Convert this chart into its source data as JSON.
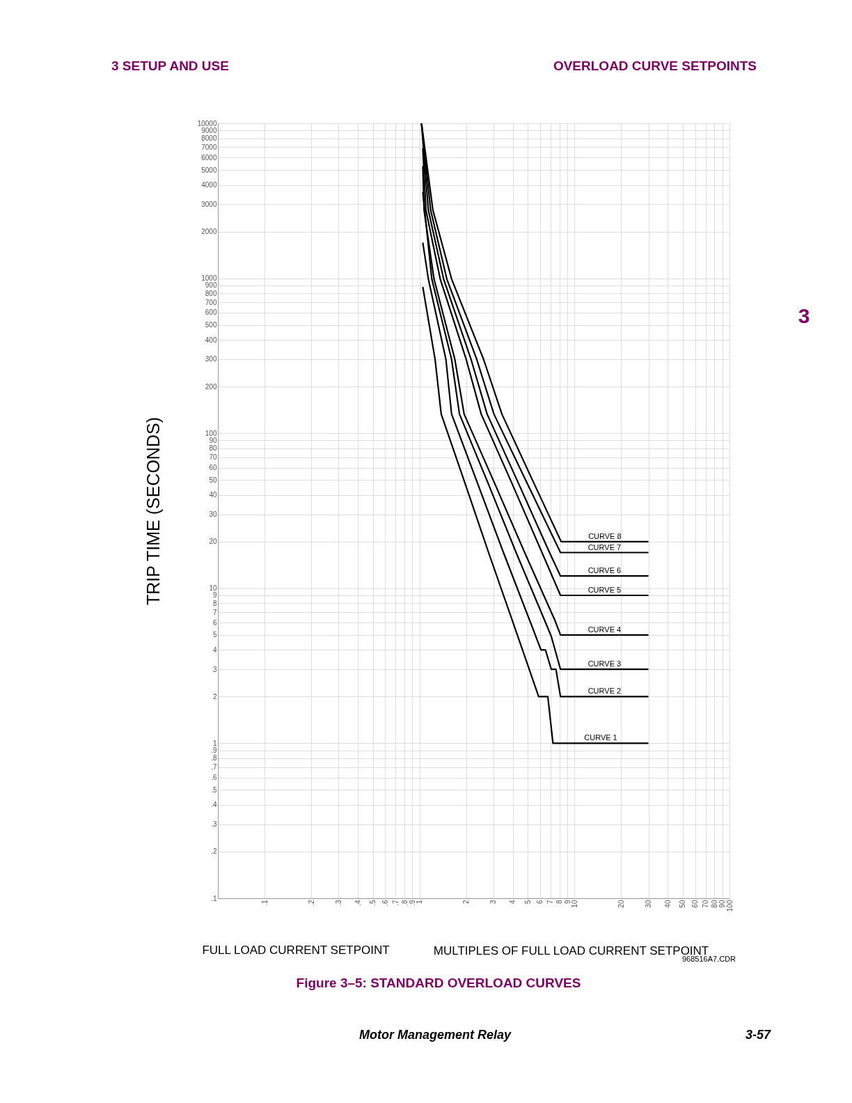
{
  "chart_data": {
    "type": "line",
    "title": "Figure 3–5: STANDARD OVERLOAD CURVES",
    "xlabel": "MULTIPLES OF FULL LOAD  CURRENT SETPOINT",
    "ylabel": "TRIP TIME (SECONDS)",
    "annotations": [
      "3 SETUP AND USE",
      "OVERLOAD CURVE SETPOINTS",
      "3",
      "FULL LOAD  CURRENT SETPOINT",
      "968516A7.CDR",
      "Motor Management Relay",
      "3-57"
    ],
    "log": "xy",
    "grid": true,
    "legend": false,
    "marker": "none",
    "line_style": "solid",
    "xlim": [
      0.05,
      100
    ],
    "ylim": [
      0.1,
      10000
    ],
    "xticks": [
      {
        "value": 0.1,
        "label": ".1"
      },
      {
        "value": 0.2,
        "label": ".2"
      },
      {
        "value": 0.3,
        "label": ".3"
      },
      {
        "value": 0.4,
        "label": ".4"
      },
      {
        "value": 0.5,
        "label": ".5"
      },
      {
        "value": 0.6,
        "label": ".6"
      },
      {
        "value": 0.7,
        "label": ".7"
      },
      {
        "value": 0.8,
        "label": ".8"
      },
      {
        "value": 0.9,
        "label": ".9"
      },
      1,
      2,
      3,
      4,
      5,
      6,
      7,
      8,
      9,
      10,
      20,
      30,
      40,
      50,
      60,
      70,
      80,
      90,
      100
    ],
    "yticks": [
      {
        "value": 0.1,
        "label": ".1"
      },
      {
        "value": 0.2,
        "label": ".2"
      },
      {
        "value": 0.3,
        "label": ".3"
      },
      {
        "value": 0.4,
        "label": ".4"
      },
      {
        "value": 0.5,
        "label": ".5"
      },
      {
        "value": 0.6,
        "label": ".6"
      },
      {
        "value": 0.7,
        "label": ".7"
      },
      {
        "value": 0.8,
        "label": ".8"
      },
      {
        "value": 0.9,
        "label": ".9"
      },
      1,
      2,
      3,
      4,
      5,
      6,
      7,
      8,
      9,
      10,
      20,
      30,
      40,
      50,
      60,
      70,
      80,
      90,
      100,
      200,
      300,
      400,
      500,
      600,
      700,
      800,
      900,
      1000,
      2000,
      3000,
      4000,
      5000,
      6000,
      7000,
      8000,
      9000,
      10000
    ],
    "series": [
      {
        "name": "CURVE 1",
        "color": "#000000",
        "x": [
          1.05,
          1.26,
          1.38,
          1.96,
          2.79,
          3.97,
          5.87,
          6.73,
          7.26,
          30
        ],
        "values": [
          880,
          300,
          133,
          48,
          17,
          6.2,
          2,
          2,
          1,
          1
        ]
      },
      {
        "name": "CURVE 2",
        "color": "#000000",
        "x": [
          1.05,
          1.14,
          1.48,
          1.61,
          2.36,
          3.48,
          5.14,
          6.08,
          6.5,
          7.08,
          7.59,
          8.12,
          30
        ],
        "values": [
          1700,
          990,
          300,
          133,
          48,
          17,
          6.2,
          4,
          4,
          3,
          3,
          2,
          2
        ]
      },
      {
        "name": "CURVE 3",
        "color": "#000000",
        "x": [
          1.05,
          1.2,
          1.61,
          1.81,
          2.76,
          4.2,
          6.42,
          7.08,
          8.12,
          30
        ],
        "values": [
          3600,
          990,
          300,
          133,
          48,
          17,
          6.2,
          4.9,
          3,
          3
        ]
      },
      {
        "name": "CURVE 4",
        "color": "#000000",
        "x": [
          1.05,
          1.07,
          1.24,
          1.69,
          1.94,
          3.04,
          4.77,
          7.48,
          8.12,
          30
        ],
        "values": [
          5300,
          2750,
          990,
          300,
          133,
          48,
          17,
          6.2,
          5,
          5
        ]
      },
      {
        "name": "CURVE 5",
        "color": "#000000",
        "x": [
          1.05,
          1.1,
          1.36,
          2.0,
          2.5,
          3.93,
          6.17,
          8.12,
          30
        ],
        "values": [
          6900,
          2750,
          990,
          300,
          133,
          48,
          17,
          9,
          9
        ]
      },
      {
        "name": "CURVE 6",
        "color": "#000000",
        "x": [
          1.03,
          1.14,
          1.43,
          2.15,
          2.73,
          4.33,
          6.9,
          8.12,
          30
        ],
        "values": [
          10000,
          2750,
          990,
          300,
          133,
          48,
          17,
          12,
          12
        ]
      },
      {
        "name": "CURVE 7",
        "color": "#000000",
        "x": [
          1.03,
          1.18,
          1.5,
          2.34,
          3.02,
          4.93,
          8.12,
          30
        ],
        "values": [
          10000,
          2750,
          990,
          300,
          133,
          48,
          17,
          17
        ]
      },
      {
        "name": "CURVE 8",
        "color": "#000000",
        "x": [
          1.03,
          1.22,
          1.61,
          2.59,
          3.4,
          5.45,
          8.2,
          30
        ],
        "values": [
          10000,
          2750,
          990,
          300,
          133,
          48,
          20,
          20
        ]
      }
    ]
  }
}
